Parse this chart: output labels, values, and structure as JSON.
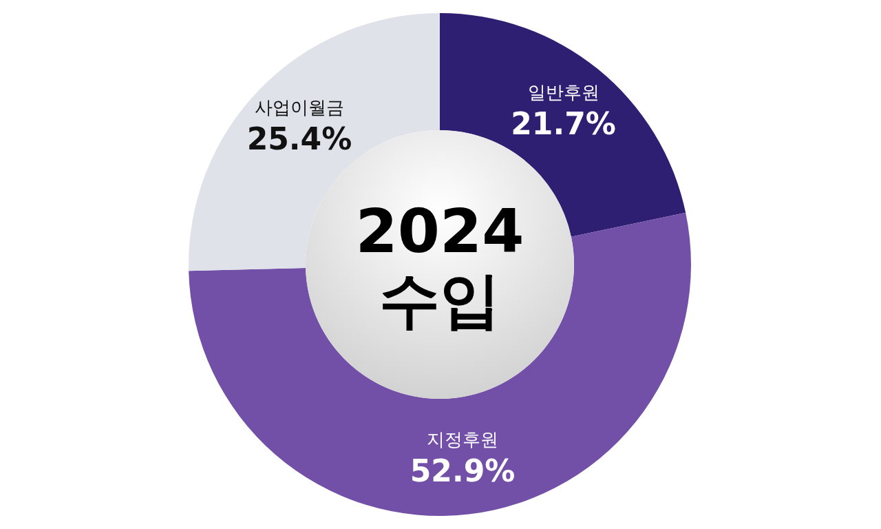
{
  "chart_data": {
    "type": "donut",
    "title": "2024 수입",
    "categories": [
      "일반후원",
      "지정후원",
      "사업이월금"
    ],
    "values": [
      21.7,
      52.9,
      25.4
    ],
    "colors": [
      "#2e1f73",
      "#7350a8",
      "#e0e2ea"
    ],
    "value_labels": [
      "21.7%",
      "52.9%",
      "25.4%"
    ],
    "legend": false
  }
}
